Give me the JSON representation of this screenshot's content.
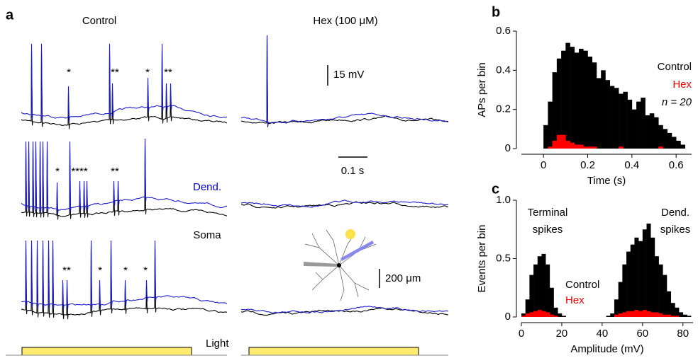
{
  "panel_a": {
    "panel": "a",
    "left_title": "Control",
    "right_title": "Hex (100 μM)",
    "volt_scale": "15 mV",
    "time_scale": "0.1 s",
    "dend_label": "Dend.",
    "soma_label": "Soma",
    "morph_scale": "200 μm",
    "light_label": "Light",
    "stars": [
      "*",
      "**",
      "*",
      "**",
      "*",
      "****",
      "**",
      "**",
      "*",
      "*",
      "*"
    ]
  },
  "chart_data": [
    {
      "type": "histogram",
      "panel": "b",
      "xlabel": "Time (s)",
      "ylabel": "APs per bin",
      "annotation": "n = 20",
      "bins": [
        0,
        0.02,
        0.04,
        0.06,
        0.08,
        0.1,
        0.12,
        0.14,
        0.16,
        0.18,
        0.2,
        0.22,
        0.24,
        0.26,
        0.28,
        0.3,
        0.32,
        0.34,
        0.36,
        0.38,
        0.4,
        0.42,
        0.44,
        0.46,
        0.48,
        0.5,
        0.52,
        0.54,
        0.56,
        0.58,
        0.6,
        0.62,
        0.64
      ],
      "series": [
        {
          "name": "Control",
          "color": "#000000",
          "values": [
            0.12,
            0.24,
            0.39,
            0.46,
            0.5,
            0.54,
            0.52,
            0.49,
            0.51,
            0.5,
            0.47,
            0.44,
            0.36,
            0.4,
            0.35,
            0.32,
            0.31,
            0.28,
            0.29,
            0.25,
            0.2,
            0.24,
            0.26,
            0.17,
            0.18,
            0.16,
            0.12,
            0.1,
            0.08,
            0.06,
            0.04,
            0.02
          ]
        },
        {
          "name": "Hex",
          "color": "#ff0000",
          "values": [
            0,
            0.01,
            0.04,
            0.07,
            0.07,
            0.04,
            0.03,
            0.02,
            0.02,
            0.01,
            0.01,
            0.01,
            0,
            0,
            0,
            0,
            0,
            0.01,
            0,
            0,
            0,
            0,
            0,
            0,
            0,
            0,
            0.01,
            0,
            0,
            0,
            0,
            0
          ]
        }
      ],
      "xlim": [
        -0.1,
        0.67
      ],
      "xticks": [
        0,
        0.2,
        0.4,
        0.6
      ],
      "ylim": [
        0,
        0.6
      ],
      "yticks": [
        0,
        0.2,
        0.4,
        0.6
      ]
    },
    {
      "type": "histogram",
      "panel": "c",
      "xlabel": "Amplitude (mV)",
      "ylabel": "Events per bin",
      "annotations": [
        [
          "Terminal",
          "spikes"
        ],
        [
          "Dend.",
          "spikes"
        ]
      ],
      "bins": [
        0,
        2,
        4,
        6,
        8,
        10,
        12,
        14,
        16,
        18,
        20,
        22,
        24,
        26,
        28,
        30,
        32,
        34,
        36,
        38,
        40,
        42,
        44,
        46,
        48,
        50,
        52,
        54,
        56,
        58,
        60,
        62,
        64,
        66,
        68,
        70,
        72,
        74,
        76,
        78,
        80,
        82,
        84,
        86
      ],
      "series": [
        {
          "name": "Control",
          "color": "#000000",
          "values": [
            0.03,
            0.15,
            0.36,
            0.45,
            0.52,
            0.54,
            0.45,
            0.25,
            0.08,
            0.03,
            0.01,
            0,
            0,
            0,
            0,
            0,
            0,
            0,
            0,
            0,
            0,
            0.01,
            0.03,
            0.15,
            0.3,
            0.45,
            0.56,
            0.62,
            0.68,
            0.65,
            0.75,
            0.8,
            0.68,
            0.52,
            0.45,
            0.36,
            0.22,
            0.12,
            0.08,
            0.04,
            0.02,
            0.01,
            0
          ]
        },
        {
          "name": "Hex",
          "color": "#ff0000",
          "values": [
            0.01,
            0.03,
            0.04,
            0.05,
            0.06,
            0.05,
            0.04,
            0.02,
            0.01,
            0,
            0,
            0,
            0,
            0,
            0,
            0,
            0,
            0,
            0,
            0,
            0,
            0,
            0,
            0.02,
            0.03,
            0.04,
            0.05,
            0.05,
            0.06,
            0.05,
            0.06,
            0.05,
            0.04,
            0.04,
            0.03,
            0.02,
            0.02,
            0.01,
            0.01,
            0,
            0,
            0,
            0
          ]
        }
      ],
      "xlim": [
        0,
        85
      ],
      "xticks": [
        0,
        20,
        40,
        60,
        80
      ],
      "ylim": [
        0,
        1
      ],
      "yticks": [
        0,
        0.5,
        {
          "value": 1,
          "label": "1.0"
        }
      ]
    }
  ]
}
